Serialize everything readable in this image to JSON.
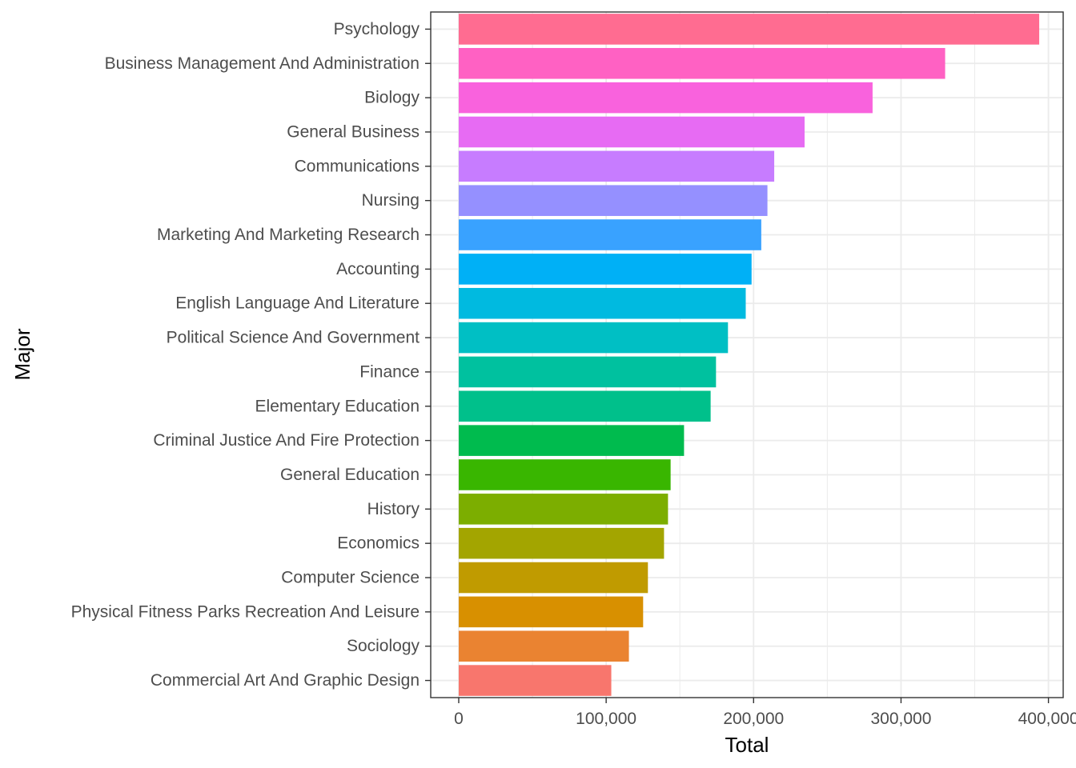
{
  "chart_data": {
    "type": "bar",
    "orientation": "horizontal",
    "xlabel": "Total",
    "ylabel": "Major",
    "xlim": [
      -19000,
      410000
    ],
    "x_ticks": [
      0,
      100000,
      200000,
      300000,
      400000
    ],
    "x_tick_labels": [
      "0",
      "100,000",
      "200,000",
      "300,000",
      "400,000"
    ],
    "grid": true,
    "legend": "none",
    "categories": [
      "Psychology",
      "Business Management And Administration",
      "Biology",
      "General Business",
      "Communications",
      "Nursing",
      "Marketing And Marketing Research",
      "Accounting",
      "English Language And Literature",
      "Political Science And Government",
      "Finance",
      "Elementary Education",
      "Criminal Justice And Fire Protection",
      "General Education",
      "History",
      "Economics",
      "Computer Science",
      "Physical Fitness Parks Recreation And Leisure",
      "Sociology",
      "Commercial Art And Graphic Design"
    ],
    "values": [
      393735,
      329927,
      280709,
      234590,
      213996,
      209394,
      205211,
      198633,
      194673,
      182621,
      174506,
      170862,
      152824,
      143718,
      141951,
      139247,
      128319,
      125074,
      115433,
      103480
    ],
    "colors": [
      "#FF6C91",
      "#FF61C3",
      "#F962DD",
      "#E76BF3",
      "#C77CFF",
      "#9590FF",
      "#39A2FF",
      "#00B0F6",
      "#00BAE0",
      "#00BFC4",
      "#00C19F",
      "#00C08B",
      "#00BB4E",
      "#39B600",
      "#7CAE00",
      "#A3A500",
      "#C09B00",
      "#D89000",
      "#EA8331",
      "#F8766D"
    ]
  }
}
